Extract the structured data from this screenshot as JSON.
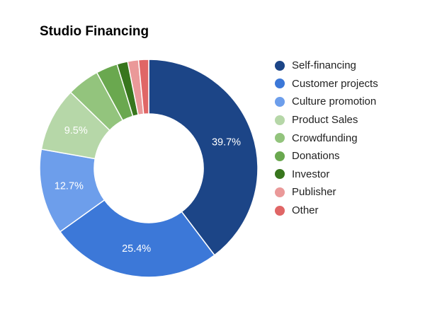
{
  "chart_data": {
    "type": "pie",
    "title": "Studio Financing",
    "legend_position": "right",
    "series": [
      {
        "name": "Self-financing",
        "value": 39.7,
        "color": "#1c4587",
        "label": "39.7%"
      },
      {
        "name": "Customer projects",
        "value": 25.4,
        "color": "#3c78d8",
        "label": "25.4%"
      },
      {
        "name": "Culture promotion",
        "value": 12.7,
        "color": "#6d9eeb",
        "label": "12.7%"
      },
      {
        "name": "Product Sales",
        "value": 9.5,
        "color": "#b6d7a8",
        "label": "9.5%"
      },
      {
        "name": "Crowdfunding",
        "value": 4.8,
        "color": "#93c47d",
        "label": ""
      },
      {
        "name": "Donations",
        "value": 3.2,
        "color": "#6aa84f",
        "label": ""
      },
      {
        "name": "Investor",
        "value": 1.6,
        "color": "#38761d",
        "label": ""
      },
      {
        "name": "Publisher",
        "value": 1.6,
        "color": "#ea9999",
        "label": ""
      },
      {
        "name": "Other",
        "value": 1.5,
        "color": "#e06666",
        "label": ""
      }
    ]
  }
}
